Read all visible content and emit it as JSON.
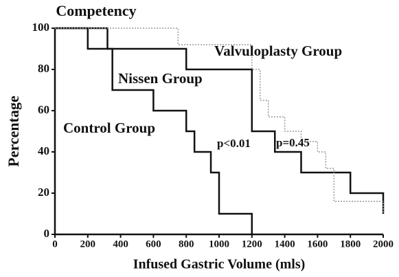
{
  "chart_data": {
    "type": "step",
    "title": "Competency",
    "xlabel": "Infused Gastric Volume (mls)",
    "ylabel": "Percentage",
    "xlim": [
      0,
      2000
    ],
    "ylim": [
      0,
      100
    ],
    "xticks": [
      0,
      200,
      400,
      600,
      800,
      1000,
      1200,
      1400,
      1600,
      1800,
      2000
    ],
    "yticks": [
      0,
      20,
      40,
      60,
      80,
      100
    ],
    "series": [
      {
        "name": "Control Group",
        "color": "#111111",
        "x": [
          0,
          200,
          350,
          600,
          800,
          850,
          950,
          1000,
          1200
        ],
        "values": [
          100,
          90,
          70,
          60,
          50,
          40,
          30,
          10,
          0
        ]
      },
      {
        "name": "Nissen Group",
        "color": "#111111",
        "x": [
          0,
          320,
          800,
          1200,
          1340,
          1500,
          1800,
          2000
        ],
        "values": [
          100,
          90,
          80,
          50,
          40,
          30,
          20,
          10
        ]
      },
      {
        "name": "Valvuloplasty Group",
        "color": "#999999",
        "dashed": true,
        "x": [
          0,
          750,
          1200,
          1250,
          1300,
          1400,
          1500,
          1600,
          1650,
          1700,
          1950,
          2000
        ],
        "values": [
          100,
          92,
          80,
          65,
          57,
          50,
          45,
          40,
          32,
          16,
          16,
          10
        ]
      }
    ],
    "annotations": [
      "p<0.01",
      "p=0.45"
    ]
  }
}
